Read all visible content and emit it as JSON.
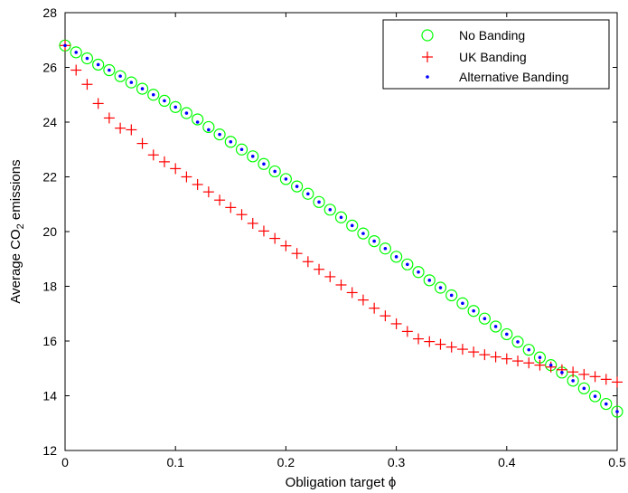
{
  "chart_data": {
    "type": "scatter",
    "title": "",
    "xlabel": "Obligation target ϕ",
    "ylabel": {
      "prefix": "Average CO",
      "sub": "2",
      "suffix": " emissions"
    },
    "xlim": [
      0,
      0.5
    ],
    "ylim": [
      12,
      28
    ],
    "xticks": [
      "0",
      "0.1",
      "0.2",
      "0.3",
      "0.4",
      "0.5"
    ],
    "yticks": [
      "12",
      "14",
      "16",
      "18",
      "20",
      "22",
      "24",
      "26",
      "28"
    ],
    "grid": false,
    "legend_position": "top-right",
    "x": [
      0,
      0.01,
      0.02,
      0.03,
      0.04,
      0.05,
      0.06,
      0.07,
      0.08,
      0.09,
      0.1,
      0.11,
      0.12,
      0.13,
      0.14,
      0.15,
      0.16,
      0.17,
      0.18,
      0.19,
      0.2,
      0.21,
      0.22,
      0.23,
      0.24,
      0.25,
      0.26,
      0.27,
      0.28,
      0.29,
      0.3,
      0.31,
      0.32,
      0.33,
      0.34,
      0.35,
      0.36,
      0.37,
      0.38,
      0.39,
      0.4,
      0.41,
      0.42,
      0.43,
      0.44,
      0.45,
      0.46,
      0.47,
      0.48,
      0.49,
      0.5
    ],
    "series": [
      {
        "name": "No Banding",
        "marker": "circle",
        "color": "#00ff00",
        "values": [
          26.8,
          26.55,
          26.33,
          26.1,
          25.9,
          25.68,
          25.45,
          25.22,
          25.0,
          24.78,
          24.55,
          24.33,
          24.1,
          23.82,
          23.55,
          23.28,
          23.0,
          22.75,
          22.47,
          22.2,
          21.92,
          21.65,
          21.38,
          21.08,
          20.8,
          20.52,
          20.22,
          19.93,
          19.65,
          19.38,
          19.08,
          18.8,
          18.52,
          18.22,
          17.95,
          17.67,
          17.38,
          17.1,
          16.82,
          16.53,
          16.25,
          15.97,
          15.68,
          15.4,
          15.12,
          14.85,
          14.55,
          14.27,
          13.98,
          13.7,
          13.42
        ]
      },
      {
        "name": "UK Banding",
        "marker": "plus",
        "color": "#ff0000",
        "values": [
          26.8,
          25.9,
          25.38,
          24.68,
          24.15,
          23.78,
          23.72,
          23.22,
          22.8,
          22.55,
          22.3,
          22.0,
          21.72,
          21.45,
          21.15,
          20.88,
          20.62,
          20.3,
          20.02,
          19.75,
          19.48,
          19.2,
          18.9,
          18.62,
          18.35,
          18.05,
          17.77,
          17.5,
          17.2,
          16.92,
          16.63,
          16.35,
          16.08,
          15.98,
          15.88,
          15.78,
          15.7,
          15.6,
          15.5,
          15.42,
          15.35,
          15.27,
          15.2,
          15.12,
          15.05,
          14.95,
          14.87,
          14.78,
          14.7,
          14.6,
          14.5
        ]
      },
      {
        "name": "Alternative Banding",
        "marker": "dot",
        "color": "#0000ff",
        "values": [
          26.8,
          26.55,
          26.33,
          26.1,
          25.9,
          25.68,
          25.45,
          25.22,
          25.0,
          24.78,
          24.55,
          24.33,
          24.0,
          23.72,
          23.55,
          23.28,
          23.0,
          22.75,
          22.47,
          22.2,
          21.92,
          21.65,
          21.38,
          21.08,
          20.8,
          20.52,
          20.22,
          19.93,
          19.65,
          19.38,
          19.08,
          18.8,
          18.52,
          18.22,
          17.95,
          17.67,
          17.38,
          17.1,
          16.82,
          16.53,
          16.25,
          15.97,
          15.68,
          15.4,
          15.12,
          14.85,
          14.55,
          14.27,
          13.98,
          13.7,
          13.42
        ]
      }
    ]
  }
}
